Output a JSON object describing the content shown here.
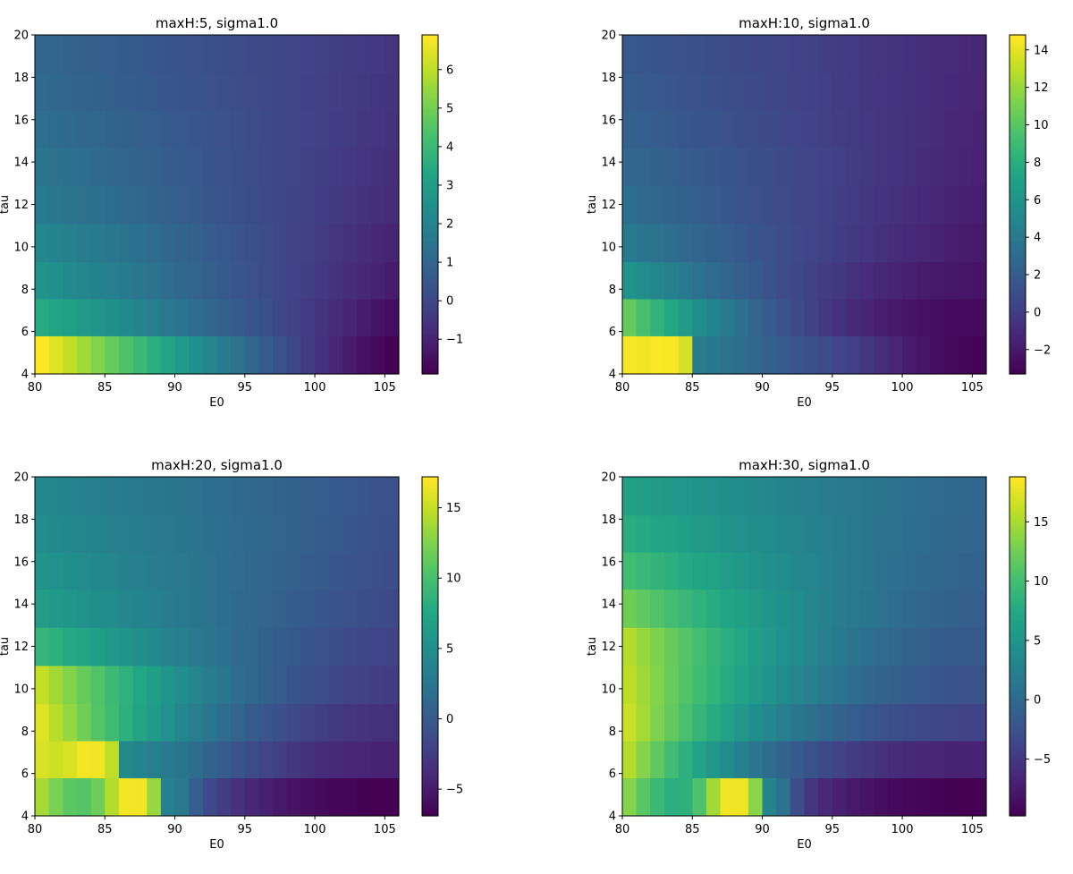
{
  "chart_data": [
    {
      "type": "heatmap",
      "title": "maxH:5, sigma1.0",
      "xlabel": "E0",
      "ylabel": "tau",
      "xlim": [
        80,
        106
      ],
      "ylim": [
        4,
        20
      ],
      "xticks": [
        "80",
        "85",
        "90",
        "95",
        "100",
        "105"
      ],
      "yticks": [
        "4",
        "6",
        "8",
        "10",
        "12",
        "14",
        "16",
        "18",
        "20"
      ],
      "colorbar": {
        "min": -1.9,
        "max": 6.9,
        "ticks": [
          "−1",
          "0",
          "1",
          "2",
          "3",
          "4",
          "5",
          "6"
        ]
      },
      "rows": [
        {
          "tau": 5,
          "left": 6.9,
          "right": -1.9,
          "shape": 1.2
        },
        {
          "tau": 6.7,
          "left": 3.5,
          "right": -1.6,
          "shape": 1.0
        },
        {
          "tau": 8.4,
          "left": 2.6,
          "right": -1.2,
          "shape": 1.0
        },
        {
          "tau": 10.2,
          "left": 2.2,
          "right": -1.0,
          "shape": 1.0
        },
        {
          "tau": 12.0,
          "left": 1.7,
          "right": -0.8,
          "shape": 1.0
        },
        {
          "tau": 13.8,
          "left": 1.5,
          "right": -0.7,
          "shape": 1.0
        },
        {
          "tau": 15.6,
          "left": 1.3,
          "right": -0.6,
          "shape": 1.0
        },
        {
          "tau": 17.3,
          "left": 1.1,
          "right": -0.55,
          "shape": 1.0
        },
        {
          "tau": 19.1,
          "left": 1.0,
          "right": -0.5,
          "shape": 1.0
        }
      ]
    },
    {
      "type": "heatmap",
      "title": "maxH:10, sigma1.0",
      "xlabel": "E0",
      "ylabel": "tau",
      "xlim": [
        80,
        106
      ],
      "ylim": [
        4,
        20
      ],
      "xticks": [
        "80",
        "85",
        "90",
        "95",
        "100",
        "105"
      ],
      "yticks": [
        "4",
        "6",
        "8",
        "10",
        "12",
        "14",
        "16",
        "18",
        "20"
      ],
      "colorbar": {
        "min": -3.3,
        "max": 14.8,
        "ticks": [
          "−2",
          "0",
          "2",
          "4",
          "6",
          "8",
          "10",
          "12",
          "14"
        ]
      },
      "rows": [
        {
          "tau": 5,
          "left": 14.5,
          "right": -3.2,
          "shape": 1.6,
          "peak": 83,
          "peakval": 14.8
        },
        {
          "tau": 6.7,
          "left": 10.5,
          "right": -2.8,
          "shape": 2.0
        },
        {
          "tau": 8.4,
          "left": 6.0,
          "right": -2.3,
          "shape": 1.6
        },
        {
          "tau": 10.2,
          "left": 4.0,
          "right": -2.0,
          "shape": 1.2
        },
        {
          "tau": 12.0,
          "left": 3.2,
          "right": -1.8,
          "shape": 1.1
        },
        {
          "tau": 13.8,
          "left": 2.7,
          "right": -1.6,
          "shape": 1.0
        },
        {
          "tau": 15.6,
          "left": 2.3,
          "right": -1.5,
          "shape": 1.0
        },
        {
          "tau": 17.3,
          "left": 2.0,
          "right": -1.4,
          "shape": 1.0
        },
        {
          "tau": 19.1,
          "left": 1.8,
          "right": -1.3,
          "shape": 1.0
        }
      ]
    },
    {
      "type": "heatmap",
      "title": "maxH:20, sigma1.0",
      "xlabel": "E0",
      "ylabel": "tau",
      "xlim": [
        80,
        106
      ],
      "ylim": [
        4,
        20
      ],
      "xticks": [
        "80",
        "85",
        "90",
        "95",
        "100",
        "105"
      ],
      "yticks": [
        "4",
        "6",
        "8",
        "10",
        "12",
        "14",
        "16",
        "18",
        "20"
      ],
      "colorbar": {
        "min": -6.9,
        "max": 17.2,
        "ticks": [
          "−5",
          "0",
          "5",
          "10",
          "15"
        ]
      },
      "rows": [
        {
          "tau": 5,
          "left": 14.0,
          "right": -6.9,
          "shape": 2.2,
          "peak": 87,
          "peakval": 17.2
        },
        {
          "tau": 6.7,
          "left": 15.5,
          "right": -4.5,
          "shape": 2.0,
          "peak": 84,
          "peakval": 17.0
        },
        {
          "tau": 8.4,
          "left": 16.0,
          "right": -3.5,
          "shape": 1.8
        },
        {
          "tau": 10.2,
          "left": 15.0,
          "right": -2.5,
          "shape": 1.7
        },
        {
          "tau": 12.0,
          "left": 9.0,
          "right": -2.0,
          "shape": 1.4
        },
        {
          "tau": 13.8,
          "left": 6.5,
          "right": -1.5,
          "shape": 1.2
        },
        {
          "tau": 15.6,
          "left": 5.5,
          "right": -1.2,
          "shape": 1.1
        },
        {
          "tau": 17.3,
          "left": 4.8,
          "right": -1.0,
          "shape": 1.0
        },
        {
          "tau": 19.1,
          "left": 4.3,
          "right": -0.8,
          "shape": 1.0
        }
      ]
    },
    {
      "type": "heatmap",
      "title": "maxH:30, sigma1.0",
      "xlabel": "E0",
      "ylabel": "tau",
      "xlim": [
        80,
        106
      ],
      "ylim": [
        4,
        20
      ],
      "xticks": [
        "80",
        "85",
        "90",
        "95",
        "100",
        "105"
      ],
      "yticks": [
        "4",
        "6",
        "8",
        "10",
        "12",
        "14",
        "16",
        "18",
        "20"
      ],
      "colorbar": {
        "min": -9.8,
        "max": 18.8,
        "ticks": [
          "−5",
          "0",
          "5",
          "10",
          "15"
        ]
      },
      "rows": [
        {
          "tau": 5,
          "left": 13.5,
          "right": -9.8,
          "shape": 2.4,
          "peak": 88,
          "peakval": 18.8
        },
        {
          "tau": 6.7,
          "left": 15.5,
          "right": -7.0,
          "shape": 2.2
        },
        {
          "tau": 8.4,
          "left": 16.5,
          "right": -4.0,
          "shape": 2.0
        },
        {
          "tau": 10.2,
          "left": 16.0,
          "right": -2.5,
          "shape": 1.8
        },
        {
          "tau": 12.0,
          "left": 15.5,
          "right": -1.8,
          "shape": 1.7
        },
        {
          "tau": 13.8,
          "left": 12.5,
          "right": -1.2,
          "shape": 1.5
        },
        {
          "tau": 15.6,
          "left": 10.0,
          "right": -0.8,
          "shape": 1.4
        },
        {
          "tau": 17.3,
          "left": 8.0,
          "right": -0.5,
          "shape": 1.3
        },
        {
          "tau": 19.1,
          "left": 6.5,
          "right": -0.3,
          "shape": 1.2
        }
      ]
    }
  ]
}
